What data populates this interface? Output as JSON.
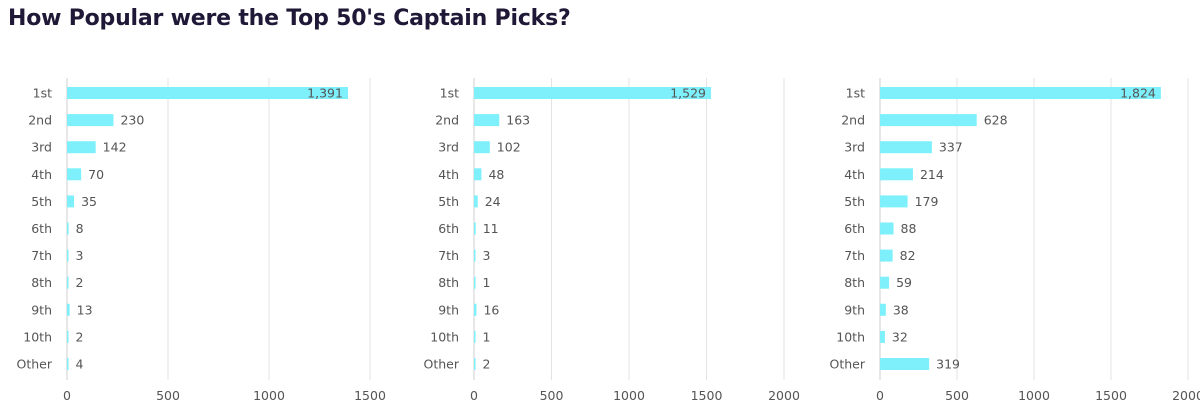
{
  "title": "How Popular were the Top 50's Captain Picks?",
  "colors": {
    "bar": "#7ef0fb",
    "grid": "#e3e3e3",
    "text": "#555555",
    "title": "#1f1836"
  },
  "chart_data": [
    {
      "type": "bar",
      "orientation": "horizontal",
      "categories": [
        "1st",
        "2nd",
        "3rd",
        "4th",
        "5th",
        "6th",
        "7th",
        "8th",
        "9th",
        "10th",
        "Other"
      ],
      "values": [
        1391,
        230,
        142,
        70,
        35,
        8,
        3,
        2,
        13,
        2,
        4
      ],
      "value_labels": [
        "1,391",
        "230",
        "142",
        "70",
        "35",
        "8",
        "3",
        "2",
        "13",
        "2",
        "4"
      ],
      "xlim": [
        0,
        1500
      ],
      "xticks": [
        0,
        500,
        1000,
        1500
      ],
      "grid": true
    },
    {
      "type": "bar",
      "orientation": "horizontal",
      "categories": [
        "1st",
        "2nd",
        "3rd",
        "4th",
        "5th",
        "6th",
        "7th",
        "8th",
        "9th",
        "10th",
        "Other"
      ],
      "values": [
        1529,
        163,
        102,
        48,
        24,
        11,
        3,
        1,
        16,
        1,
        2
      ],
      "value_labels": [
        "1,529",
        "163",
        "102",
        "48",
        "24",
        "11",
        "3",
        "1",
        "16",
        "1",
        "2"
      ],
      "xlim": [
        0,
        2000
      ],
      "xticks": [
        0,
        500,
        1000,
        1500,
        2000
      ],
      "grid": true
    },
    {
      "type": "bar",
      "orientation": "horizontal",
      "categories": [
        "1st",
        "2nd",
        "3rd",
        "4th",
        "5th",
        "6th",
        "7th",
        "8th",
        "9th",
        "10th",
        "Other"
      ],
      "values": [
        1824,
        628,
        337,
        214,
        179,
        88,
        82,
        59,
        38,
        32,
        319
      ],
      "value_labels": [
        "1,824",
        "628",
        "337",
        "214",
        "179",
        "88",
        "82",
        "59",
        "38",
        "32",
        "319"
      ],
      "xlim": [
        0,
        2000
      ],
      "xticks": [
        0,
        500,
        1000,
        1500,
        2000
      ],
      "grid": true
    }
  ]
}
